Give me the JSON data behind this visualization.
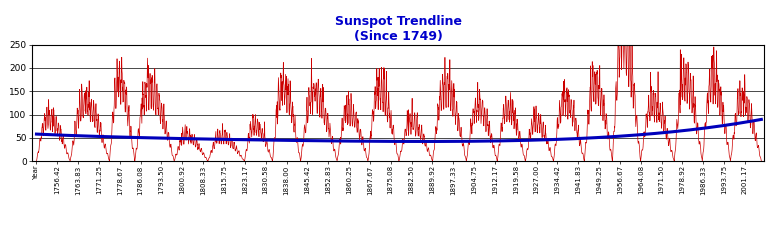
{
  "title_line1": "Sunspot Trendline",
  "title_line2": "(Since 1749)",
  "title_color": "#0000CC",
  "title_fontsize": 9,
  "background_color": "#FFFFFF",
  "line_color": "#CC0000",
  "trend_color": "#0000BB",
  "trend_linewidth": 2.2,
  "data_linewidth": 0.5,
  "ylim": [
    0,
    250
  ],
  "yticks": [
    0,
    50,
    100,
    150,
    200,
    250
  ],
  "year_start": 1749,
  "year_end": 2007,
  "grid_color": "#000000",
  "grid_linewidth": 0.5,
  "xtick_labelsize": 5.0,
  "ytick_labelsize": 6.5,
  "xtick_years": [
    1749.0,
    1756.42,
    1763.83,
    1771.25,
    1778.67,
    1786.08,
    1793.5,
    1800.92,
    1808.33,
    1815.75,
    1823.17,
    1830.58,
    1838.0,
    1845.42,
    1852.83,
    1860.25,
    1867.67,
    1875.08,
    1882.5,
    1889.92,
    1897.33,
    1904.75,
    1912.17,
    1919.58,
    1927.0,
    1934.42,
    1941.83,
    1949.25,
    1956.67,
    1964.08,
    1971.5,
    1978.92,
    1986.33,
    1993.75,
    2001.17
  ],
  "xtick_labels": [
    "Year",
    "1756.42",
    "1763.83",
    "1771.25",
    "1778.67",
    "1786.08",
    "1793.50",
    "1800.92",
    "1808.33",
    "1815.75",
    "1823.17",
    "1830.58",
    "1838.00",
    "1845.42",
    "1852.83",
    "1860.25",
    "1867.67",
    "1875.08",
    "1882.50",
    "1889.92",
    "1897.33",
    "1904.75",
    "1912.17",
    "1919.58",
    "1927.00",
    "1934.42",
    "1941.83",
    "1949.25",
    "1956.67",
    "1964.08",
    "1971.50",
    "1978.92",
    "1986.33",
    "1993.75",
    "2001.17"
  ],
  "cycle_data": [
    [
      1749,
      1761,
      86,
      0.35
    ],
    [
      1761,
      1775,
      115,
      0.35
    ],
    [
      1775,
      1784,
      158,
      0.35
    ],
    [
      1784,
      1798,
      141,
      0.35
    ],
    [
      1798,
      1810,
      49,
      0.35
    ],
    [
      1810,
      1823,
      48,
      0.35
    ],
    [
      1823,
      1833,
      71,
      0.35
    ],
    [
      1833,
      1843,
      146,
      0.35
    ],
    [
      1843,
      1856,
      131,
      0.35
    ],
    [
      1856,
      1867,
      97,
      0.35
    ],
    [
      1867,
      1878,
      140,
      0.35
    ],
    [
      1878,
      1890,
      75,
      0.35
    ],
    [
      1890,
      1902,
      147,
      0.35
    ],
    [
      1902,
      1913,
      107,
      0.35
    ],
    [
      1913,
      1923,
      105,
      0.35
    ],
    [
      1923,
      1933,
      78,
      0.35
    ],
    [
      1933,
      1944,
      119,
      0.35
    ],
    [
      1944,
      1954,
      152,
      0.35
    ],
    [
      1954,
      1964,
      248,
      0.35
    ],
    [
      1964,
      1976,
      111,
      0.35
    ],
    [
      1976,
      1986,
      164,
      0.35
    ],
    [
      1986,
      1996,
      159,
      0.35
    ],
    [
      1996,
      2007,
      121,
      0.35
    ]
  ]
}
